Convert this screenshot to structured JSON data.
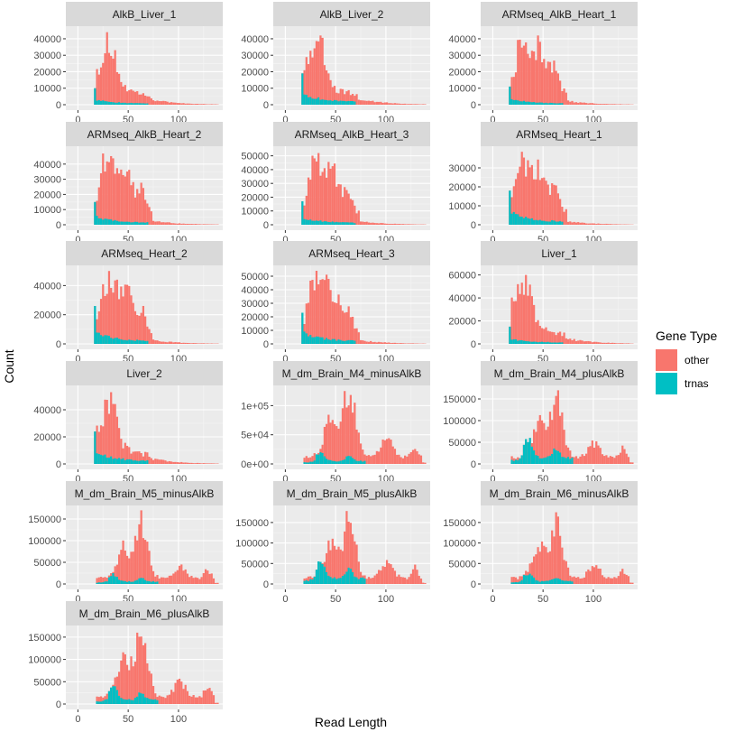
{
  "chart_data": {
    "type": "bar",
    "subtype": "faceted-stacked-histogram",
    "xlabel": "Read Length",
    "ylabel": "Count",
    "xlim": [
      0,
      140
    ],
    "x_ticks": [
      0,
      50,
      100
    ],
    "grid": true,
    "legend": {
      "title": "Gene Type",
      "position": "right",
      "entries": [
        {
          "name": "other",
          "color": "#F8766D"
        },
        {
          "name": "trnas",
          "color": "#00BFC4"
        }
      ]
    },
    "facets": [
      {
        "label": "AlkB_Liver_1",
        "ylim": [
          0,
          46000
        ],
        "y_ticks": [
          0,
          10000,
          20000,
          30000,
          40000
        ],
        "y_tick_labels": [
          "0",
          "10000",
          "20000",
          "30000",
          "40000"
        ],
        "shape": "liver",
        "other_peak": 44000,
        "trnas_peak": 10000
      },
      {
        "label": "AlkB_Liver_2",
        "ylim": [
          0,
          46000
        ],
        "y_ticks": [
          0,
          10000,
          20000,
          30000,
          40000
        ],
        "y_tick_labels": [
          "0",
          "10000",
          "20000",
          "30000",
          "40000"
        ],
        "shape": "liver",
        "other_peak": 42000,
        "trnas_peak": 19000
      },
      {
        "label": "ARMseq_AlkB_Heart_1",
        "ylim": [
          0,
          46000
        ],
        "y_ticks": [
          0,
          10000,
          20000,
          30000,
          40000
        ],
        "y_tick_labels": [
          "0",
          "10000",
          "20000",
          "30000",
          "40000"
        ],
        "shape": "heart",
        "other_peak": 42000,
        "trnas_peak": 11000
      },
      {
        "label": "ARMseq_AlkB_Heart_2",
        "ylim": [
          0,
          50000
        ],
        "y_ticks": [
          0,
          10000,
          20000,
          30000,
          40000
        ],
        "y_tick_labels": [
          "0",
          "10000",
          "20000",
          "30000",
          "40000"
        ],
        "shape": "heart",
        "other_peak": 47000,
        "trnas_peak": 15000
      },
      {
        "label": "ARMseq_AlkB_Heart_3",
        "ylim": [
          0,
          55000
        ],
        "y_ticks": [
          0,
          10000,
          20000,
          30000,
          40000,
          50000
        ],
        "y_tick_labels": [
          "0",
          "10000",
          "20000",
          "30000",
          "40000",
          "50000"
        ],
        "shape": "heart",
        "other_peak": 52000,
        "trnas_peak": 17000
      },
      {
        "label": "ARMseq_Heart_1",
        "ylim": [
          0,
          40000
        ],
        "y_ticks": [
          0,
          10000,
          20000,
          30000
        ],
        "y_tick_labels": [
          "0",
          "10000",
          "20000",
          "30000"
        ],
        "shape": "heart",
        "other_peak": 38500,
        "trnas_peak": 18000
      },
      {
        "label": "ARMseq_Heart_2",
        "ylim": [
          0,
          52000
        ],
        "y_ticks": [
          0,
          20000,
          40000
        ],
        "y_tick_labels": [
          "0",
          "20000",
          "40000"
        ],
        "shape": "heart",
        "other_peak": 50000,
        "trnas_peak": 26000
      },
      {
        "label": "ARMseq_Heart_3",
        "ylim": [
          0,
          56000
        ],
        "y_ticks": [
          0,
          10000,
          20000,
          30000,
          40000,
          50000
        ],
        "y_tick_labels": [
          "0",
          "10000",
          "20000",
          "30000",
          "40000",
          "50000"
        ],
        "shape": "heart",
        "other_peak": 54000,
        "trnas_peak": 23000
      },
      {
        "label": "Liver_1",
        "ylim": [
          0,
          66000
        ],
        "y_ticks": [
          0,
          20000,
          40000,
          60000
        ],
        "y_tick_labels": [
          "0",
          "20000",
          "40000",
          "60000"
        ],
        "shape": "liver",
        "other_peak": 60000,
        "trnas_peak": 15000
      },
      {
        "label": "Liver_2",
        "ylim": [
          0,
          56000
        ],
        "y_ticks": [
          0,
          20000,
          40000
        ],
        "y_tick_labels": [
          "0",
          "20000",
          "40000"
        ],
        "shape": "liver",
        "other_peak": 53000,
        "trnas_peak": 24000
      },
      {
        "label": "M_dm_Brain_M4_minusAlkB",
        "ylim": [
          0,
          130000
        ],
        "y_ticks": [
          0,
          50000,
          100000
        ],
        "y_tick_labels": [
          "0e+00",
          "5e+04",
          "1e+05"
        ],
        "shape": "brain",
        "other_peak": 125000,
        "trnas_peak": 20000
      },
      {
        "label": "M_dm_Brain_M4_plusAlkB",
        "ylim": [
          0,
          175000
        ],
        "y_ticks": [
          0,
          50000,
          100000,
          150000
        ],
        "y_tick_labels": [
          "0",
          "50000",
          "100000",
          "150000"
        ],
        "shape": "brain",
        "other_peak": 170000,
        "trnas_peak": 60000
      },
      {
        "label": "M_dm_Brain_M5_minusAlkB",
        "ylim": [
          0,
          175000
        ],
        "y_ticks": [
          0,
          50000,
          100000,
          150000
        ],
        "y_tick_labels": [
          "0",
          "50000",
          "100000",
          "150000"
        ],
        "shape": "brain",
        "other_peak": 170000,
        "trnas_peak": 25000
      },
      {
        "label": "M_dm_Brain_M5_plusAlkB",
        "ylim": [
          0,
          185000
        ],
        "y_ticks": [
          0,
          50000,
          100000,
          150000
        ],
        "y_tick_labels": [
          "0",
          "50000",
          "100000",
          "150000"
        ],
        "shape": "brain",
        "other_peak": 178000,
        "trnas_peak": 55000
      },
      {
        "label": "M_dm_Brain_M6_minusAlkB",
        "ylim": [
          0,
          185000
        ],
        "y_ticks": [
          0,
          50000,
          100000,
          150000
        ],
        "y_tick_labels": [
          "0",
          "50000",
          "100000",
          "150000"
        ],
        "shape": "brain",
        "other_peak": 175000,
        "trnas_peak": 25000
      },
      {
        "label": "M_dm_Brain_M6_plusAlkB",
        "ylim": [
          0,
          170000
        ],
        "y_ticks": [
          0,
          50000,
          100000,
          150000
        ],
        "y_tick_labels": [
          "0",
          "50000",
          "100000",
          "150000"
        ],
        "shape": "brain",
        "other_peak": 160000,
        "trnas_peak": 40000
      }
    ]
  }
}
